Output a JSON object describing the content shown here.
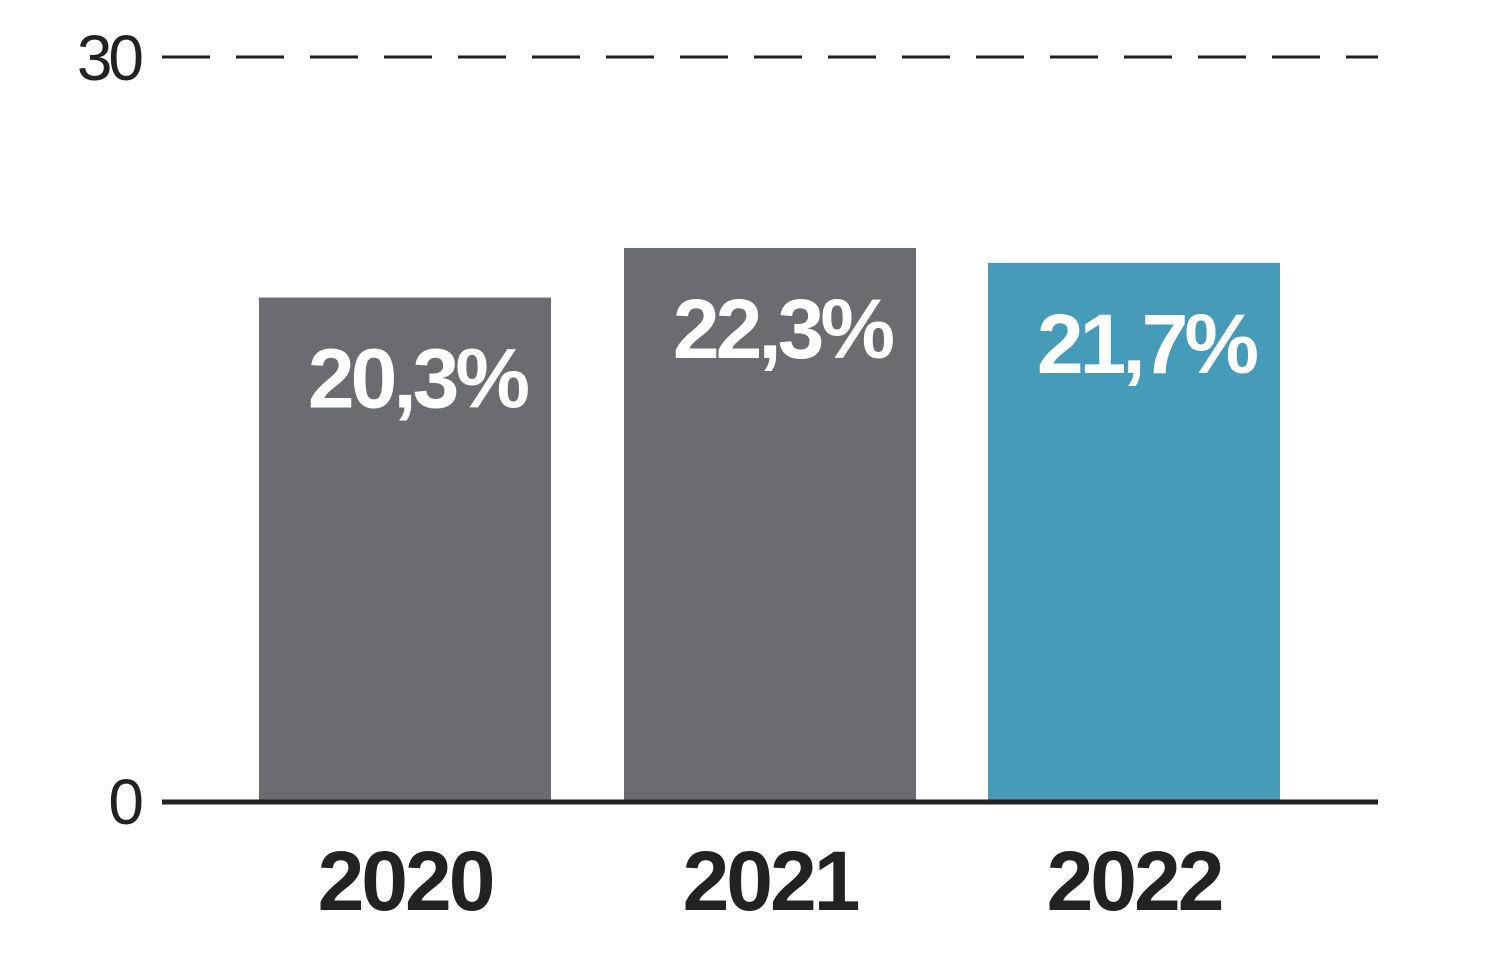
{
  "chart_data": {
    "type": "bar",
    "categories": [
      "2020",
      "2021",
      "2022"
    ],
    "values": [
      20.3,
      22.3,
      21.7
    ],
    "value_labels": [
      "20,3%",
      "22,3%",
      "21,7%"
    ],
    "title": "",
    "xlabel": "",
    "ylabel": "",
    "ylim": [
      0,
      30
    ],
    "y_ticks": [
      0,
      30
    ],
    "y_tick_labels": [
      "0",
      "30"
    ],
    "grid": "dashed line at top tick only",
    "legend": "none",
    "bar_colors": [
      "#6b6c70",
      "#6b6c70",
      "#459bb8"
    ],
    "axis_color": "#222222"
  }
}
